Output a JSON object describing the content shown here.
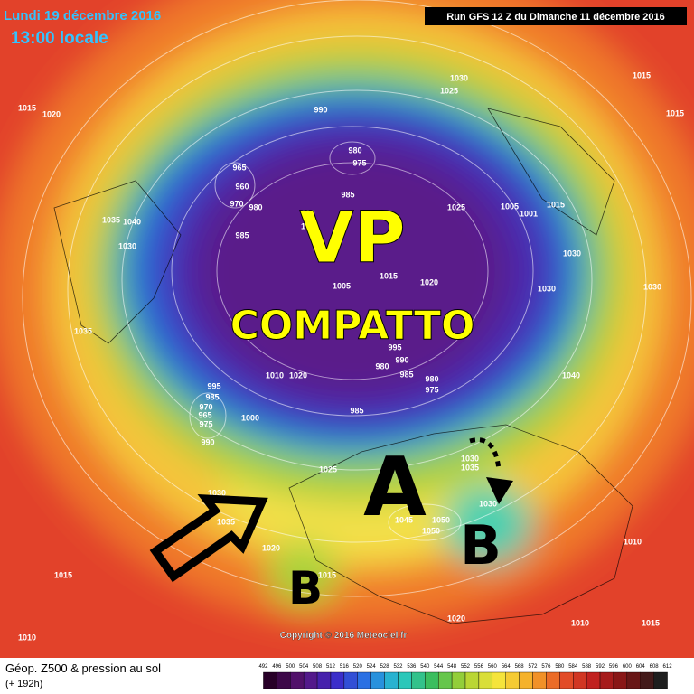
{
  "header": {
    "date": "Lundi 19 décembre 2016",
    "time": "13:00 locale",
    "run": "Run GFS 12 Z du Dimanche 11 décembre 2016"
  },
  "annotations": {
    "vp": "VP",
    "compatto": "COMPATTO",
    "high": "A",
    "low_west": "B",
    "low_east": "B"
  },
  "copyright": "Copyright © 2016 Meteociel.fr",
  "legend": {
    "title": "Géop. Z500 & pression au sol",
    "subtitle": "(+ 192h)",
    "levels": [
      492,
      496,
      500,
      504,
      508,
      512,
      516,
      520,
      524,
      528,
      532,
      536,
      540,
      544,
      548,
      552,
      556,
      560,
      564,
      568,
      572,
      576,
      580,
      584,
      588,
      592,
      596,
      600,
      604,
      608,
      612
    ]
  },
  "pressure_labels": [
    "1015",
    "1020",
    "1030",
    "1025",
    "1015",
    "1015",
    "990",
    "980",
    "975",
    "965",
    "960",
    "970",
    "980",
    "985",
    "985",
    "1025",
    "1005",
    "1001",
    "1015",
    "1035",
    "1040",
    "1030",
    "990",
    "1000",
    "1005",
    "1015",
    "1020",
    "1030",
    "1030",
    "1030",
    "1035",
    "995",
    "990",
    "980",
    "985",
    "980",
    "975",
    "1040",
    "995",
    "985",
    "970",
    "965",
    "975",
    "1000",
    "990",
    "1010",
    "1020",
    "985",
    "1025",
    "1030",
    "1035",
    "1030",
    "1030",
    "1035",
    "1045",
    "1050",
    "1050",
    "1020",
    "1015",
    "1015",
    "1010",
    "1020",
    "1010",
    "1015",
    "1010"
  ]
}
